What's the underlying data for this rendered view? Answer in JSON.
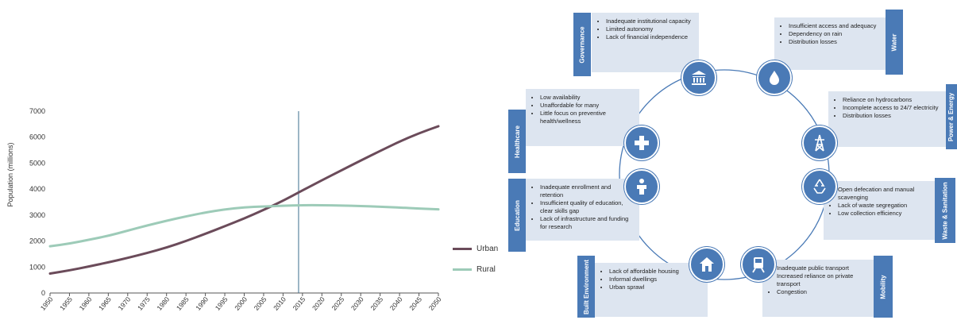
{
  "chart_data": {
    "type": "line",
    "ylabel": "Population (millions)",
    "xlabel": "",
    "x": [
      1950,
      1955,
      1960,
      1965,
      1970,
      1975,
      1980,
      1985,
      1990,
      1995,
      2000,
      2005,
      2010,
      2015,
      2020,
      2025,
      2030,
      2035,
      2040,
      2045,
      2050
    ],
    "ylim": [
      0,
      7000
    ],
    "yticks": [
      0,
      1000,
      2000,
      3000,
      4000,
      5000,
      6000,
      7000
    ],
    "vline_x": 2014,
    "grid": false,
    "legend_position": "right",
    "series": [
      {
        "name": "Urban",
        "color": "#6b4b5a",
        "values": [
          750,
          870,
          1020,
          1180,
          1350,
          1540,
          1750,
          2000,
          2280,
          2570,
          2870,
          3200,
          3550,
          3950,
          4340,
          4720,
          5100,
          5470,
          5830,
          6150,
          6420
        ]
      },
      {
        "name": "Rural",
        "color": "#9dcbb8",
        "values": [
          1800,
          1900,
          2050,
          2200,
          2400,
          2600,
          2780,
          2950,
          3100,
          3220,
          3300,
          3330,
          3360,
          3380,
          3380,
          3370,
          3350,
          3320,
          3290,
          3250,
          3220
        ]
      }
    ]
  },
  "colors": {
    "accent": "#4a7ab6",
    "box": "#dde5f0",
    "ring": "#4a7ab6"
  },
  "diagram": {
    "categories": [
      {
        "key": "governance",
        "label": "Governance",
        "icon": "government-building-icon",
        "items": [
          "Inadequate institutional capacity",
          "Limited autonomy",
          "Lack of financial independence"
        ]
      },
      {
        "key": "water",
        "label": "Water",
        "icon": "water-drop-icon",
        "items": [
          "Insufficient access and adequacy",
          "Dependency on rain",
          "Distribution losses"
        ]
      },
      {
        "key": "healthcare",
        "label": "Healthcare",
        "icon": "medical-cross-icon",
        "items": [
          "Low availability",
          "Unaffordable for many",
          "Little focus on preventive health/wellness"
        ]
      },
      {
        "key": "power",
        "label": "Power & Energy",
        "icon": "power-tower-icon",
        "items": [
          "Reliance on hydrocarbons",
          "Incomplete access to 24/7 electricity",
          "Distribution losses"
        ]
      },
      {
        "key": "education",
        "label": "Education",
        "icon": "student-icon",
        "items": [
          "Inadequate enrollment and retention",
          "Insufficient quality of education, clear skills gap",
          "Lack of infrastructure and funding for research"
        ]
      },
      {
        "key": "waste",
        "label": "Waste & Sanitation",
        "icon": "recycle-icon",
        "items": [
          "Open defecation and manual scavenging",
          "Lack of waste segregation",
          "Low collection efficiency"
        ]
      },
      {
        "key": "built",
        "label": "Built Environment",
        "icon": "house-icon",
        "items": [
          "Lack of affordable housing",
          "Informal dwellings",
          "Urban sprawl"
        ]
      },
      {
        "key": "mobility",
        "label": "Mobility",
        "icon": "train-icon",
        "items": [
          "Inadequate public transport",
          "Increased reliance on private transport",
          "Congestion"
        ]
      }
    ]
  }
}
